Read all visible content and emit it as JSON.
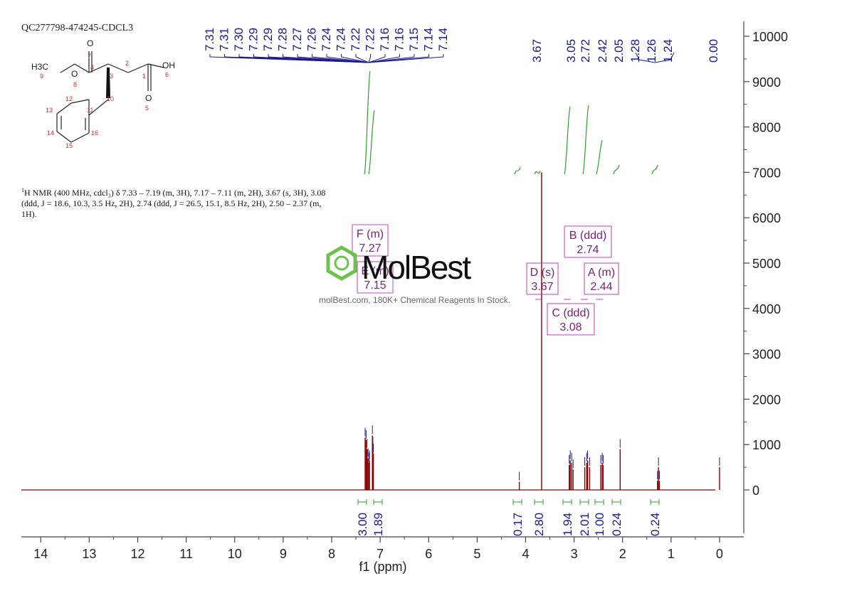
{
  "sample_id": "QC277798-474245-CDCL3",
  "nmr_description": {
    "prefix": "1",
    "text": "H NMR (400 MHz, cdcl₃) δ 7.33 – 7.19 (m, 3H), 7.17 – 7.11 (m, 2H), 3.67 (s, 3H), 3.08 (ddd, J = 18.6, 10.3, 3.5 Hz, 2H), 2.74 (ddd, J = 26.5, 15.1, 8.5 Hz, 2H), 2.50 – 2.37 (m, 1H)."
  },
  "molecule": {
    "atoms": [
      "O",
      "7",
      "H3C",
      "9",
      "4",
      "3",
      "2",
      "1",
      "OH",
      "6",
      "O",
      "8",
      "O",
      "5",
      "10",
      "12",
      "11",
      "13",
      "16",
      "14",
      "15"
    ]
  },
  "watermark": {
    "brand": "MolBest",
    "tagline": "molBest.com, 180K+ Chemical Reagents In Stock."
  },
  "colors": {
    "spectrum": "#8b0000",
    "peak_labels": "#1a1a8c",
    "integral": "#2e9e2e",
    "multiplet_box": "#c040c0",
    "multiplet_text": "#7a1f7a",
    "watermark": "#6dc24b"
  },
  "chart_data": {
    "type": "line",
    "xlabel": "f1 (ppm)",
    "xlim": [
      14.4,
      -0.5
    ],
    "ylim": [
      -1000,
      10300
    ],
    "x_ticks": [
      14,
      13,
      12,
      11,
      10,
      9,
      8,
      7,
      6,
      5,
      4,
      3,
      2,
      1,
      0
    ],
    "y_ticks": [
      0,
      1000,
      2000,
      3000,
      4000,
      5000,
      6000,
      7000,
      8000,
      9000,
      10000
    ],
    "y_tick_labels": [
      "0",
      "1000",
      "2000",
      "3000",
      "4000",
      "5000",
      "6000",
      "7000",
      "8000",
      "9000",
      "10000"
    ],
    "peaks": [
      {
        "ppm": 7.31,
        "height": 1150
      },
      {
        "ppm": 7.29,
        "height": 1100
      },
      {
        "ppm": 7.27,
        "height": 900
      },
      {
        "ppm": 7.25,
        "height": 700
      },
      {
        "ppm": 7.23,
        "height": 600
      },
      {
        "ppm": 7.22,
        "height": 650
      },
      {
        "ppm": 7.16,
        "height": 1200
      },
      {
        "ppm": 7.15,
        "height": 950
      },
      {
        "ppm": 7.14,
        "height": 800
      },
      {
        "ppm": 4.13,
        "height": 180
      },
      {
        "ppm": 3.67,
        "height": 7000
      },
      {
        "ppm": 3.1,
        "height": 550
      },
      {
        "ppm": 3.08,
        "height": 650
      },
      {
        "ppm": 3.05,
        "height": 600
      },
      {
        "ppm": 3.02,
        "height": 450
      },
      {
        "ppm": 2.78,
        "height": 500
      },
      {
        "ppm": 2.74,
        "height": 600
      },
      {
        "ppm": 2.72,
        "height": 650
      },
      {
        "ppm": 2.68,
        "height": 500
      },
      {
        "ppm": 2.45,
        "height": 550
      },
      {
        "ppm": 2.42,
        "height": 600
      },
      {
        "ppm": 2.4,
        "height": 550
      },
      {
        "ppm": 2.05,
        "height": 900
      },
      {
        "ppm": 1.28,
        "height": 200
      },
      {
        "ppm": 1.26,
        "height": 500
      },
      {
        "ppm": 1.24,
        "height": 200
      },
      {
        "ppm": 0.0,
        "height": 500
      }
    ],
    "peak_labels_group1": [
      "7.31",
      "7.31",
      "7.30",
      "7.29",
      "7.29",
      "7.28",
      "7.27",
      "7.26",
      "7.24",
      "7.24",
      "7.22",
      "7.22",
      "7.16",
      "7.16",
      "7.15",
      "7.14",
      "7.14"
    ],
    "peak_labels_group2": [
      "3.67",
      "3.05",
      "2.72",
      "2.42",
      "2.05",
      "1.28",
      "1.26",
      "1.24",
      "0.00"
    ],
    "multiplets": [
      {
        "label": "F (m)",
        "value": "7.27",
        "ppm": 7.27
      },
      {
        "label": "E (m)",
        "value": "7.15",
        "ppm": 7.15
      },
      {
        "label": "D (s)",
        "value": "3.67",
        "ppm": 3.67
      },
      {
        "label": "B (ddd)",
        "value": "2.74",
        "ppm": 2.74
      },
      {
        "label": "A (m)",
        "value": "2.44",
        "ppm": 2.44
      },
      {
        "label": "C (ddd)",
        "value": "3.08",
        "ppm": 3.08
      }
    ],
    "integrations": [
      {
        "ppm": 7.27,
        "value": "3.00"
      },
      {
        "ppm": 7.15,
        "value": "1.89"
      },
      {
        "ppm": 4.13,
        "value": "0.17"
      },
      {
        "ppm": 3.67,
        "value": "2.80"
      },
      {
        "ppm": 3.08,
        "value": "1.94"
      },
      {
        "ppm": 2.74,
        "value": "2.01"
      },
      {
        "ppm": 2.44,
        "value": "1.00"
      },
      {
        "ppm": 2.05,
        "value": "0.24"
      },
      {
        "ppm": 1.26,
        "value": "0.24"
      }
    ]
  }
}
